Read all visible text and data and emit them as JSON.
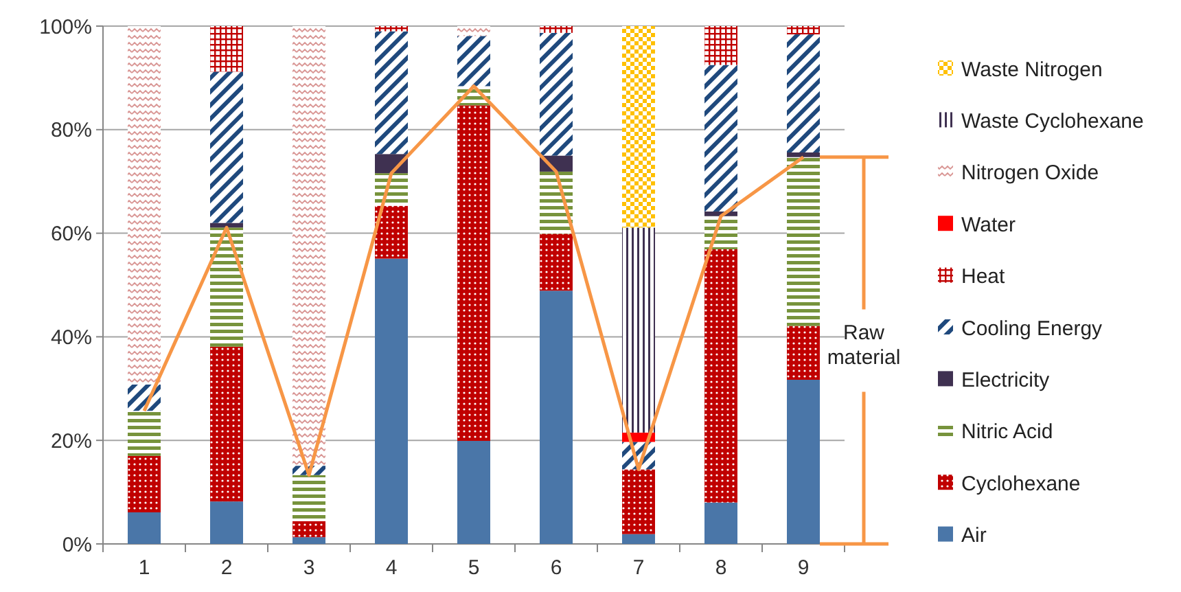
{
  "chart_data": {
    "type": "bar",
    "stacked": true,
    "categories": [
      "1",
      "2",
      "3",
      "4",
      "5",
      "6",
      "7",
      "8",
      "9"
    ],
    "ylim": [
      0,
      100
    ],
    "yticks": [
      {
        "value": 0,
        "label": "0%"
      },
      {
        "value": 20,
        "label": "20%"
      },
      {
        "value": 40,
        "label": "40%"
      },
      {
        "value": 60,
        "label": "60%"
      },
      {
        "value": 80,
        "label": "80%"
      },
      {
        "value": 100,
        "label": "100%"
      }
    ],
    "grid": "y",
    "legend": "right",
    "series": [
      {
        "name": "Air",
        "color": "#4a76a8",
        "values": [
          6.1,
          8.2,
          1.3,
          55.1,
          19.9,
          48.9,
          1.9,
          8.0,
          31.7
        ]
      },
      {
        "name": "Cyclohexane",
        "color": "#c00000",
        "values": [
          10.9,
          29.9,
          3.1,
          10.2,
          64.8,
          11.0,
          12.5,
          48.9,
          10.4
        ]
      },
      {
        "name": "Nitric Acid",
        "color": "#77933c",
        "values": [
          8.7,
          23.0,
          8.9,
          6.3,
          3.7,
          12.0,
          0,
          6.4,
          32.6
        ]
      },
      {
        "name": "Electricity",
        "color": "#3f3151",
        "values": [
          0,
          0.9,
          0,
          3.7,
          0,
          3.1,
          0,
          0.9,
          0.9
        ]
      },
      {
        "name": "Cooling Energy",
        "color": "#1f497d",
        "values": [
          5.1,
          29.2,
          1.8,
          23.7,
          9.7,
          23.7,
          5.3,
          28.3,
          22.8
        ]
      },
      {
        "name": "Heat",
        "color": "#c00000",
        "values": [
          0,
          8.8,
          0,
          1.0,
          0,
          1.3,
          0,
          7.5,
          1.6
        ]
      },
      {
        "name": "Water",
        "color": "#ff0000",
        "values": [
          0,
          0,
          0,
          0,
          0,
          0,
          1.8,
          0,
          0
        ]
      },
      {
        "name": "Nitrogen Oxide",
        "color": "#d99694",
        "values": [
          69.2,
          0,
          84.9,
          0,
          1.9,
          0,
          0,
          0,
          0
        ]
      },
      {
        "name": "Waste Cyclohexane",
        "color": "#3f3151",
        "values": [
          0,
          0,
          0,
          0,
          0,
          0,
          39.6,
          0,
          0
        ]
      },
      {
        "name": "Waste Nitrogen",
        "color": "#ffc000",
        "values": [
          0,
          0,
          0,
          0,
          0,
          0,
          38.9,
          0,
          0
        ]
      },
      {
        "type": "line",
        "color": "#f79646",
        "values": [
          25.7,
          61.1,
          13.3,
          71.6,
          88.4,
          71.9,
          14.4,
          63.3,
          74.7
        ]
      }
    ],
    "annotations": [
      "Raw material"
    ]
  }
}
